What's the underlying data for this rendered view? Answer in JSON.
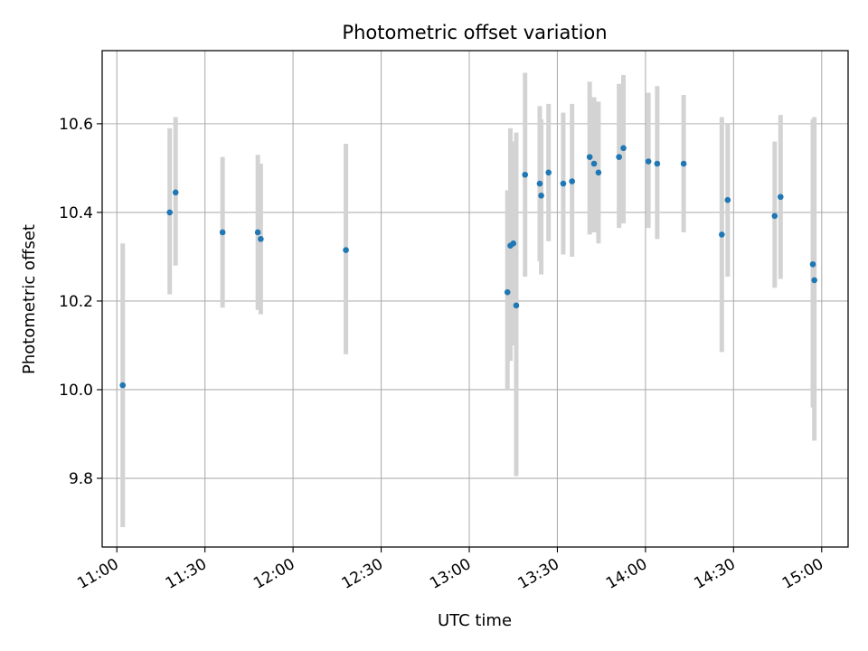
{
  "chart_data": {
    "type": "scatter",
    "title": "Photometric offset variation",
    "xlabel": "UTC time",
    "ylabel": "Photometric offset",
    "xlim": [
      "10:55",
      "15:09"
    ],
    "ylim": [
      9.645,
      10.765
    ],
    "x_ticks": [
      "11:00",
      "11:30",
      "12:00",
      "12:30",
      "13:00",
      "13:30",
      "14:00",
      "14:30",
      "15:00"
    ],
    "y_ticks": [
      "9.8",
      "10.0",
      "10.2",
      "10.4",
      "10.6"
    ],
    "grid": true,
    "colors": {
      "point": "#1f77b4",
      "error_bar": "#d3d3d3",
      "grid": "#b0b0b0"
    },
    "points": [
      {
        "time": "11:02",
        "y": 10.01,
        "lo": 9.69,
        "hi": 10.33
      },
      {
        "time": "11:18",
        "y": 10.4,
        "lo": 10.215,
        "hi": 10.59
      },
      {
        "time": "11:20",
        "y": 10.445,
        "lo": 10.28,
        "hi": 10.615
      },
      {
        "time": "11:36",
        "y": 10.355,
        "lo": 10.185,
        "hi": 10.525
      },
      {
        "time": "11:48",
        "y": 10.355,
        "lo": 10.18,
        "hi": 10.53
      },
      {
        "time": "11:49",
        "y": 10.34,
        "lo": 10.17,
        "hi": 10.51
      },
      {
        "time": "12:18",
        "y": 10.315,
        "lo": 10.08,
        "hi": 10.555
      },
      {
        "time": "13:13",
        "y": 10.22,
        "lo": 10.0,
        "hi": 10.45
      },
      {
        "time": "13:14",
        "y": 10.325,
        "lo": 10.065,
        "hi": 10.59
      },
      {
        "time": "13:15",
        "y": 10.33,
        "lo": 10.1,
        "hi": 10.56
      },
      {
        "time": "13:16",
        "y": 10.19,
        "lo": 9.805,
        "hi": 10.58
      },
      {
        "time": "13:19",
        "y": 10.485,
        "lo": 10.255,
        "hi": 10.715
      },
      {
        "time": "13:24",
        "y": 10.465,
        "lo": 10.29,
        "hi": 10.64
      },
      {
        "time": "13:24:30",
        "y": 10.438,
        "lo": 10.26,
        "hi": 10.61
      },
      {
        "time": "13:27",
        "y": 10.49,
        "lo": 10.335,
        "hi": 10.645
      },
      {
        "time": "13:32",
        "y": 10.465,
        "lo": 10.305,
        "hi": 10.625
      },
      {
        "time": "13:35",
        "y": 10.47,
        "lo": 10.3,
        "hi": 10.645
      },
      {
        "time": "13:41",
        "y": 10.525,
        "lo": 10.35,
        "hi": 10.695
      },
      {
        "time": "13:42:30",
        "y": 10.51,
        "lo": 10.355,
        "hi": 10.66
      },
      {
        "time": "13:44",
        "y": 10.49,
        "lo": 10.33,
        "hi": 10.65
      },
      {
        "time": "13:51",
        "y": 10.525,
        "lo": 10.365,
        "hi": 10.69
      },
      {
        "time": "13:52:30",
        "y": 10.545,
        "lo": 10.375,
        "hi": 10.71
      },
      {
        "time": "14:01",
        "y": 10.515,
        "lo": 10.365,
        "hi": 10.67
      },
      {
        "time": "14:04",
        "y": 10.51,
        "lo": 10.34,
        "hi": 10.685
      },
      {
        "time": "14:13",
        "y": 10.51,
        "lo": 10.355,
        "hi": 10.665
      },
      {
        "time": "14:26",
        "y": 10.35,
        "lo": 10.085,
        "hi": 10.615
      },
      {
        "time": "14:28",
        "y": 10.428,
        "lo": 10.255,
        "hi": 10.6
      },
      {
        "time": "14:44",
        "y": 10.392,
        "lo": 10.23,
        "hi": 10.56
      },
      {
        "time": "14:46",
        "y": 10.435,
        "lo": 10.25,
        "hi": 10.62
      },
      {
        "time": "14:57",
        "y": 10.283,
        "lo": 9.96,
        "hi": 10.61
      },
      {
        "time": "14:57:30",
        "y": 10.247,
        "lo": 9.885,
        "hi": 10.615
      }
    ]
  }
}
